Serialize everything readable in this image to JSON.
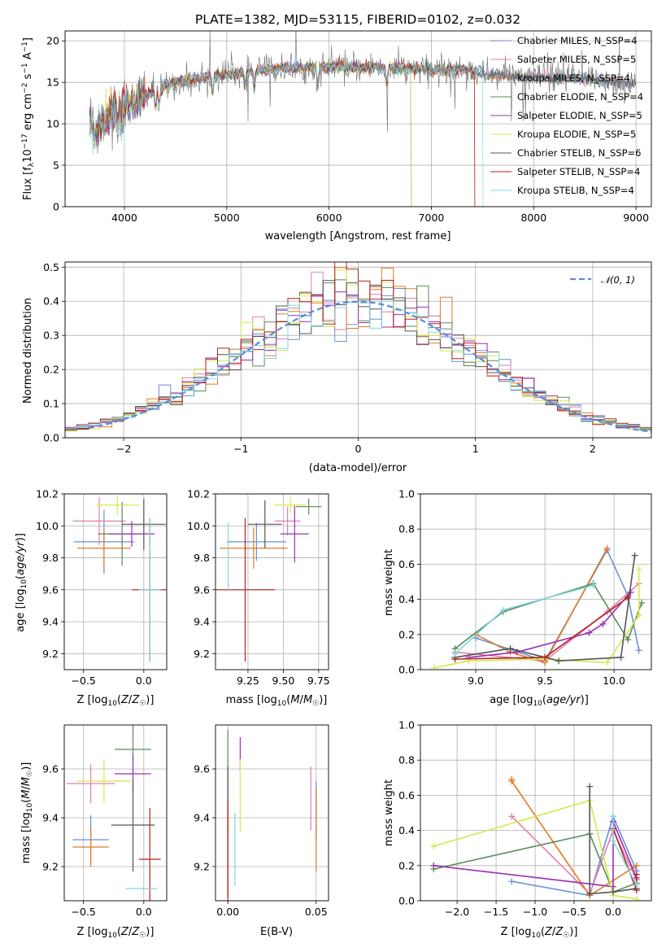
{
  "colors": [
    "#6a8fd8",
    "#e27fae",
    "#e07b25",
    "#5a8a5a",
    "#9c2fb1",
    "#d4e84d",
    "#555555",
    "#b22222",
    "#7fd7e0"
  ],
  "chart_data": [
    {
      "id": "spectrum",
      "type": "line",
      "title": "PLATE=1382, MJD=53115, FIBERID=0102, z=0.032",
      "xlabel": "wavelength [Angstrom, rest frame]",
      "ylabel": "Flux [f$_\\lambda$10$^{-17}$ erg cm$^{-2}$ s$^{-1}$ A$^{-1}$]",
      "xlim": [
        3420,
        9150
      ],
      "ylim": [
        0,
        21.2
      ],
      "xticks": [
        4000,
        5000,
        6000,
        7000,
        8000,
        9000
      ],
      "yticks": [
        0,
        5,
        10,
        15,
        20
      ],
      "legend_position": "upper right",
      "series_names": [
        "Chabrier MILES, N$_{SSP}$=4",
        "Salpeter MILES, N$_{SSP}$=5",
        "Kroupa MILES, N$_{SSP}$=4",
        "Chabrier ELODIE, N$_{SSP}$=4",
        "Salpeter ELODIE, N$_{SSP}$=5",
        "Kroupa ELODIE, N$_{SSP}$=5",
        "Chabrier STELIB, N$_{SSP}$=6",
        "Salpeter STELIB, N$_{SSP}$=4",
        "Kroupa STELIB, N$_{SSP}$=4"
      ],
      "series_names_display": [
        "Chabrier MILES, N_SSP=4",
        "Salpeter MILES, N_SSP=5",
        "Kroupa MILES, N_SSP=4",
        "Chabrier ELODIE, N_SSP=4",
        "Salpeter ELODIE, N_SSP=5",
        "Kroupa ELODIE, N_SSP=5",
        "Chabrier STELIB, N_SSP=6",
        "Salpeter STELIB, N_SSP=4",
        "Kroupa STELIB, N_SSP=4"
      ],
      "continuum_wavelength": [
        3650,
        3700,
        3800,
        3900,
        4000,
        4200,
        4500,
        5000,
        5500,
        6000,
        6500,
        7000,
        7400,
        7500,
        8000,
        8500,
        9000
      ],
      "continuum_flux": [
        11.5,
        9.0,
        10.5,
        11.5,
        12.5,
        13.5,
        15.0,
        16.0,
        16.7,
        16.8,
        16.8,
        16.5,
        16.5,
        16.0,
        15.6,
        15.5,
        14.8
      ],
      "model_ranges": [
        [
          3660,
          9000
        ],
        [
          3660,
          9000
        ],
        [
          3660,
          7420
        ],
        [
          3660,
          9000
        ],
        [
          3660,
          6800
        ],
        [
          3660,
          6800
        ],
        [
          3660,
          9000
        ],
        [
          3660,
          7420
        ],
        [
          3660,
          7500
        ]
      ]
    },
    {
      "id": "residuals",
      "type": "line",
      "xlabel": "(data-model)/error",
      "ylabel": "Normed distribution",
      "xlim": [
        -2.5,
        2.5
      ],
      "ylim": [
        0,
        0.515
      ],
      "xticks": [
        -2,
        -1,
        0,
        1,
        2
      ],
      "yticks": [
        0.0,
        0.1,
        0.2,
        0.3,
        0.4,
        0.5
      ],
      "legend_label": "𝒩(0, 1)",
      "legend_position": "upper right",
      "reference_curve": "standard normal"
    },
    {
      "id": "age-vs-Z",
      "type": "scatter",
      "xlabel": "Z [log10(Z/Z☉)]",
      "ylabel": "age  [log10(age/yr)]",
      "xlim": [
        -0.66,
        0.19
      ],
      "ylim": [
        9.1,
        10.2
      ],
      "xticks": [
        -0.5,
        0.0
      ],
      "yticks": [
        9.2,
        9.4,
        9.6,
        9.8,
        10.0,
        10.2
      ],
      "points": [
        {
          "x": -0.33,
          "y": 9.9,
          "xerr": 0.25,
          "yerr": 0.2
        },
        {
          "x": -0.37,
          "y": 10.03,
          "xerr": 0.22,
          "yerr": 0.15
        },
        {
          "x": -0.33,
          "y": 9.86,
          "xerr": 0.22,
          "yerr": 0.12
        },
        {
          "x": -0.18,
          "y": 9.95,
          "xerr": 0.2,
          "yerr": 0.2
        },
        {
          "x": -0.1,
          "y": 9.95,
          "xerr": 0.19,
          "yerr": 0.08
        },
        {
          "x": -0.22,
          "y": 10.13,
          "xerr": 0.18,
          "yerr": 0.06
        },
        {
          "x": 0.0,
          "y": 10.01,
          "xerr": 0.18,
          "yerr": 0.16
        },
        {
          "x": 0.05,
          "y": 9.6,
          "xerr": 0.15,
          "yerr": 0.45
        },
        {
          "x": 0.05,
          "y": 9.6,
          "xerr": 0.09,
          "yerr": 0.45
        }
      ]
    },
    {
      "id": "age-vs-mass",
      "type": "scatter",
      "xlabel": "mass [log10(M/M☉)]",
      "ylabel": "",
      "xlim": [
        9.02,
        9.82
      ],
      "ylim": [
        9.1,
        10.2
      ],
      "xticks": [
        9.25,
        9.5,
        9.75
      ],
      "yticks": [
        9.2,
        9.4,
        9.6,
        9.8,
        10.0,
        10.2
      ],
      "points": [
        {
          "x": 9.31,
          "y": 9.9,
          "xerr": 0.21,
          "yerr": 0.12
        },
        {
          "x": 9.53,
          "y": 10.03,
          "xerr": 0.09,
          "yerr": 0.09
        },
        {
          "x": 9.29,
          "y": 9.86,
          "xerr": 0.24,
          "yerr": 0.13
        },
        {
          "x": 9.68,
          "y": 10.12,
          "xerr": 0.09,
          "yerr": 0.05
        },
        {
          "x": 9.58,
          "y": 9.95,
          "xerr": 0.1,
          "yerr": 0.18
        },
        {
          "x": 9.55,
          "y": 10.13,
          "xerr": 0.11,
          "yerr": 0.05
        },
        {
          "x": 9.37,
          "y": 10.01,
          "xerr": 0.12,
          "yerr": 0.15
        },
        {
          "x": 9.23,
          "y": 9.6,
          "xerr": 0.21,
          "yerr": 0.45
        },
        {
          "x": 9.11,
          "y": 9.81,
          "xerr": 0.0,
          "yerr": 0.21
        }
      ]
    },
    {
      "id": "mass-weight-vs-age",
      "type": "line",
      "xlabel": "age  [log10(age/yr)]",
      "ylabel": "mass weight",
      "xlim": [
        8.6,
        10.27
      ],
      "ylim": [
        0.0,
        1.0
      ],
      "xticks": [
        9.0,
        9.5,
        10.0
      ],
      "yticks": [
        0.0,
        0.2,
        0.4,
        0.6,
        0.8,
        1.0
      ],
      "series": [
        {
          "x": [
            9.0,
            9.5,
            9.95,
            10.1,
            10.18
          ],
          "y": [
            0.18,
            0.05,
            0.68,
            0.42,
            0.11
          ]
        },
        {
          "x": [
            8.85,
            9.5,
            9.95,
            10.18
          ],
          "y": [
            0.1,
            0.05,
            0.33,
            0.49
          ]
        },
        {
          "x": [
            9.0,
            9.25,
            9.5,
            9.95
          ],
          "y": [
            0.2,
            0.1,
            0.04,
            0.69
          ]
        },
        {
          "x": [
            8.85,
            9.2,
            9.85,
            10.1,
            10.2
          ],
          "y": [
            0.12,
            0.33,
            0.49,
            0.17,
            0.38
          ]
        },
        {
          "x": [
            8.95,
            9.3,
            9.82,
            9.92,
            10.12
          ],
          "y": [
            0.07,
            0.1,
            0.21,
            0.26,
            0.44
          ]
        },
        {
          "x": [
            8.7,
            8.95,
            9.5,
            9.95,
            10.18,
            10.18
          ],
          "y": [
            0.01,
            0.05,
            0.06,
            0.04,
            0.31,
            0.57
          ]
        },
        {
          "x": [
            8.85,
            9.25,
            9.6,
            10.05,
            10.15
          ],
          "y": [
            0.07,
            0.12,
            0.05,
            0.07,
            0.65
          ]
        },
        {
          "x": [
            8.85,
            9.5,
            10.1
          ],
          "y": [
            0.06,
            0.07,
            0.41
          ]
        },
        {
          "x": [
            8.85,
            9.2,
            9.85
          ],
          "y": [
            0.09,
            0.34,
            0.48
          ]
        }
      ]
    },
    {
      "id": "mass-vs-Z",
      "type": "scatter",
      "xlabel": "Z [log10(Z/Z☉)]",
      "ylabel": "mass [log10(M/M☉)]",
      "xlim": [
        -0.66,
        0.19
      ],
      "ylim": [
        9.06,
        9.78
      ],
      "xticks": [
        -0.5,
        0.0
      ],
      "yticks": [
        9.2,
        9.4,
        9.6
      ],
      "points": [
        {
          "x": -0.44,
          "y": 9.31,
          "xerr": 0.15,
          "yerr": 0.1
        },
        {
          "x": -0.44,
          "y": 9.54,
          "xerr": 0.2,
          "yerr": 0.08
        },
        {
          "x": -0.44,
          "y": 9.28,
          "xerr": 0.15,
          "yerr": 0.08
        },
        {
          "x": -0.09,
          "y": 9.68,
          "xerr": 0.15,
          "yerr": 0.1
        },
        {
          "x": -0.09,
          "y": 9.58,
          "xerr": 0.15,
          "yerr": 0.08
        },
        {
          "x": -0.33,
          "y": 9.55,
          "xerr": 0.22,
          "yerr": 0.09
        },
        {
          "x": -0.09,
          "y": 9.37,
          "xerr": 0.18,
          "yerr": 0.19
        },
        {
          "x": 0.05,
          "y": 9.23,
          "xerr": 0.09,
          "yerr": 0.21
        },
        {
          "x": -0.02,
          "y": 9.11,
          "xerr": 0.13,
          "yerr": 0.0
        }
      ]
    },
    {
      "id": "mass-vs-EBV",
      "type": "scatter",
      "xlabel": "E(B-V)",
      "ylabel": "",
      "xlim": [
        -0.007,
        0.057
      ],
      "ylim": [
        9.06,
        9.78
      ],
      "xticks": [
        0.0,
        0.05
      ],
      "yticks": [
        9.2,
        9.4,
        9.6
      ],
      "points": [
        {
          "x": 0.05,
          "y": 9.43,
          "yerr": 0.12
        },
        {
          "x": 0.047,
          "y": 9.48,
          "yerr": 0.13
        },
        {
          "x": 0.05,
          "y": 9.35,
          "yerr": 0.17
        },
        {
          "x": 0.0,
          "y": 9.46,
          "yerr": 0.3
        },
        {
          "x": 0.007,
          "y": 9.66,
          "yerr": 0.07
        },
        {
          "x": 0.007,
          "y": 9.49,
          "yerr": 0.15
        },
        {
          "x": 0.0,
          "y": 9.33,
          "yerr": 0.28
        },
        {
          "x": 0.0,
          "y": 9.27,
          "yerr": 0.2
        },
        {
          "x": 0.004,
          "y": 9.27,
          "yerr": 0.15
        }
      ]
    },
    {
      "id": "mass-weight-vs-Z",
      "type": "line",
      "xlabel": "Z [log10(Z/Z☉)]",
      "ylabel": "mass weight",
      "xlim": [
        -2.47,
        0.49
      ],
      "ylim": [
        0.0,
        1.0
      ],
      "xticks": [
        -2.0,
        -1.5,
        -1.0,
        -0.5,
        0.0
      ],
      "yticks": [
        0.0,
        0.2,
        0.4,
        0.6,
        0.8,
        1.0
      ],
      "series": [
        {
          "x": [
            -1.3,
            -0.3,
            0.0,
            0.3
          ],
          "y": [
            0.11,
            0.03,
            0.48,
            0.17
          ]
        },
        {
          "x": [
            -1.3,
            -0.3,
            0.0,
            0.3
          ],
          "y": [
            0.48,
            0.04,
            0.4,
            0.12
          ]
        },
        {
          "x": [
            -1.3,
            -1.3,
            -0.3,
            0.3
          ],
          "y": [
            0.69,
            0.68,
            0.03,
            0.2
          ]
        },
        {
          "x": [
            -2.3,
            -0.3,
            0.0,
            0.3
          ],
          "y": [
            0.18,
            0.38,
            0.05,
            0.1
          ]
        },
        {
          "x": [
            -2.3,
            0.0,
            0.0,
            0.3
          ],
          "y": [
            0.2,
            0.08,
            0.45,
            0.13
          ]
        },
        {
          "x": [
            -2.3,
            -0.3,
            0.0,
            0.3
          ],
          "y": [
            0.31,
            0.57,
            0.03,
            0.01
          ]
        },
        {
          "x": [
            -0.3,
            -0.3,
            0.0,
            0.3
          ],
          "y": [
            0.65,
            0.04,
            0.05,
            0.07
          ]
        },
        {
          "x": [
            0.0,
            0.3,
            0.3
          ],
          "y": [
            0.41,
            0.06,
            0.15
          ]
        },
        {
          "x": [
            0.0,
            0.0,
            0.3
          ],
          "y": [
            0.48,
            0.34,
            0.09
          ]
        }
      ]
    }
  ]
}
